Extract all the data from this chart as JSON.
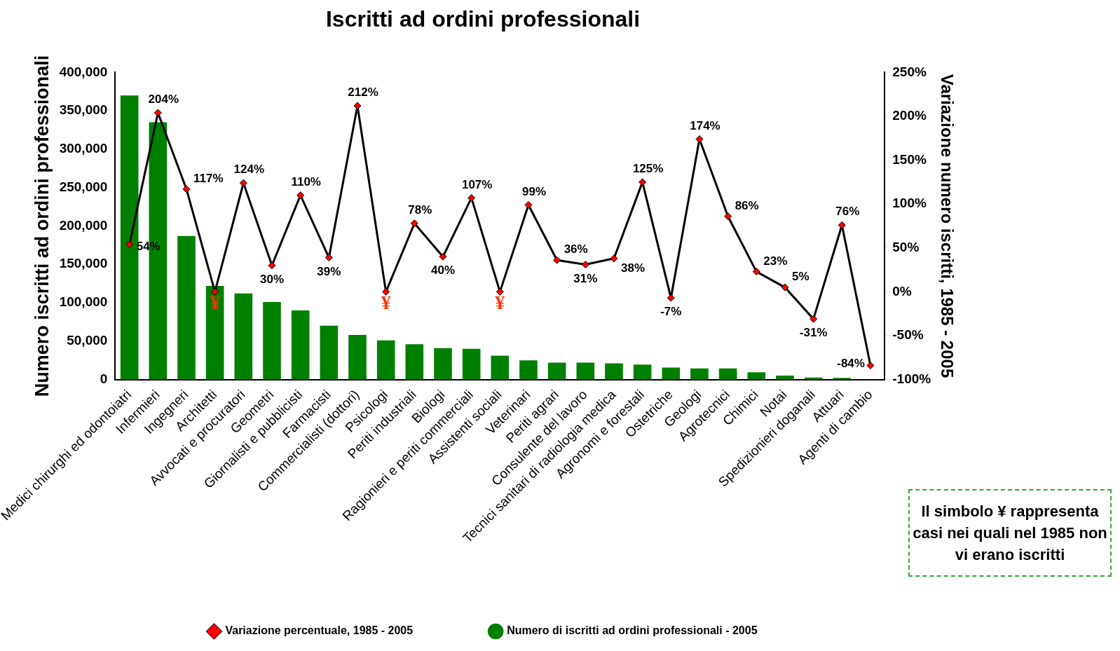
{
  "chart_data": {
    "type": "bar",
    "title": "Iscritti ad ordini professionali",
    "ylabel": "Numero iscritti ad ordini professionali",
    "y2label": "Variazione numero iscritti, 1985 - 2005",
    "categories": [
      "Medici chirurghi ed odontoiatri",
      "Infermieri",
      "Ingegneri",
      "Architetti",
      "Avvocati e procuratori",
      "Geometri",
      "Giornalisti e pubblicisti",
      "Farmacisti",
      "Commercialisti (dottori)",
      "Psicologi",
      "Periti industriali",
      "Biologi",
      "Ragionieri e periti commerciali",
      "Assistenti sociali",
      "Veterinari",
      "Periti agrari",
      "Consulente del lavoro",
      "Tecnici sanitari di radiologia medica",
      "Agronomi e forestali",
      "Ostetriche",
      "Geologi",
      "Agrotecnici",
      "Chimici",
      "Notai",
      "Spedizionieri doganali",
      "Attuari",
      "Agenti di cambio"
    ],
    "series": [
      {
        "name": "Numero di iscritti ad ordini professionali - 2005",
        "color": "#008000",
        "values": [
          370000,
          335000,
          187000,
          122000,
          112000,
          101000,
          90000,
          70000,
          58000,
          51000,
          46000,
          41000,
          40000,
          31000,
          25000,
          22000,
          22000,
          21000,
          19500,
          15500,
          14500,
          14500,
          9500,
          5000,
          2500,
          2000,
          0
        ]
      },
      {
        "type": "line",
        "axis": "y2",
        "name": "Variazione percentuale, 1985 - 2005",
        "color": "#000000",
        "colors": [
          "#ff0000",
          "#ff0000",
          "#ff0000",
          "#ff0000",
          "#ff0000",
          "#ff0000",
          "#ff0000",
          "#ff0000",
          "#ff0000",
          "#ff0000",
          "#ff0000",
          "#ff0000",
          "#ff0000",
          "#ff0000",
          "#ff0000",
          "#ff0000",
          "#ff0000",
          "#ff0000",
          "#ff0000",
          "#ff0000",
          "#ff0000",
          "#ff0000",
          "#ff0000",
          "#ff0000",
          "#ff0000",
          "#ff0000",
          "#ff0000"
        ],
        "values": [
          54,
          204,
          117,
          0,
          124,
          30,
          110,
          39,
          212,
          0,
          78,
          40,
          107,
          0,
          99,
          36,
          31,
          38,
          125,
          -7,
          174,
          86,
          23,
          5,
          -31,
          76,
          -84
        ],
        "value_labels": [
          "54%",
          "204%",
          "117%",
          null,
          "124%",
          "30%",
          "110%",
          "39%",
          "212%",
          null,
          "78%",
          "40%",
          "107%",
          null,
          "99%",
          "36%",
          "31%",
          "38%",
          "125%",
          "-7%",
          "174%",
          "86%",
          "23%",
          "5%",
          "-31%",
          "76%",
          "-84%"
        ]
      }
    ],
    "ylim": [
      0,
      400000
    ],
    "yticks": [
      {
        "value": 0,
        "label": "0"
      },
      {
        "value": 50000,
        "label": "50,000"
      },
      {
        "value": 100000,
        "label": "100,000"
      },
      {
        "value": 150000,
        "label": "150,000"
      },
      {
        "value": 200000,
        "label": "200,000"
      },
      {
        "value": 250000,
        "label": "250,000"
      },
      {
        "value": 300000,
        "label": "300,000"
      },
      {
        "value": 350000,
        "label": "350,000"
      },
      {
        "value": 400000,
        "label": "400,000"
      }
    ],
    "y2lim": [
      -100,
      250
    ],
    "y2ticks": [
      {
        "value": -100,
        "label": "-100%"
      },
      {
        "value": -50,
        "label": "-50%"
      },
      {
        "value": 0,
        "label": "0%"
      },
      {
        "value": 50,
        "label": "50%"
      },
      {
        "value": 100,
        "label": "100%"
      },
      {
        "value": 150,
        "label": "150%"
      },
      {
        "value": 200,
        "label": "200%"
      },
      {
        "value": 250,
        "label": "250%"
      }
    ],
    "grid": false,
    "legend": "bottom",
    "marker": "diamond",
    "line_style": "solid",
    "annotations": [
      "¥",
      "¥",
      "¥",
      "Il simbolo ¥ rappresenta casi nei quali nel 1985 non vi erano iscritti"
    ]
  }
}
